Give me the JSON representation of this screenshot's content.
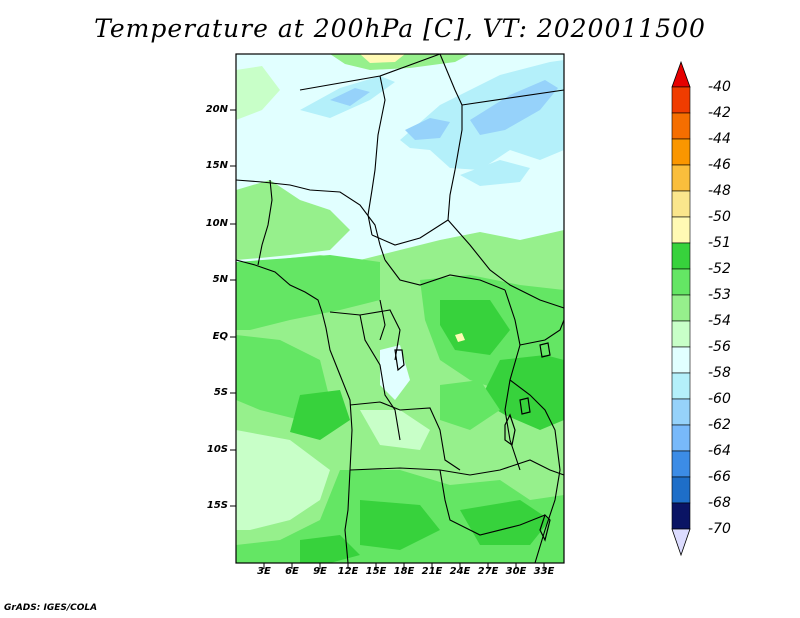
{
  "title": "Temperature at 200hPa [C], VT: 2020011500",
  "credit": "GrADS: IGES/COLA",
  "y_ticks": [
    "20N",
    "15N",
    "10N",
    "5N",
    "EQ",
    "5S",
    "10S",
    "15S"
  ],
  "x_ticks": [
    "3E",
    "6E",
    "9E",
    "12E",
    "15E",
    "18E",
    "21E",
    "24E",
    "27E",
    "30E",
    "33E"
  ],
  "colorbar": {
    "levels": [
      "-40",
      "-42",
      "-44",
      "-46",
      "-48",
      "-50",
      "-51",
      "-52",
      "-53",
      "-54",
      "-56",
      "-58",
      "-60",
      "-62",
      "-64",
      "-66",
      "-68",
      "-70"
    ],
    "colors": [
      "#e60000",
      "#f03c00",
      "#f56e00",
      "#fa9600",
      "#fabe3c",
      "#fae68c",
      "#fffab4",
      "#37d23c",
      "#64e664",
      "#96f08c",
      "#c8ffc8",
      "#e1ffff",
      "#b4f0fa",
      "#96d2fa",
      "#78b9fa",
      "#50a5f5",
      "#3c8ce6",
      "#1e6ec8",
      "#1450b4",
      "#0a3291",
      "#0a1464",
      "#dcdcff"
    ]
  }
}
